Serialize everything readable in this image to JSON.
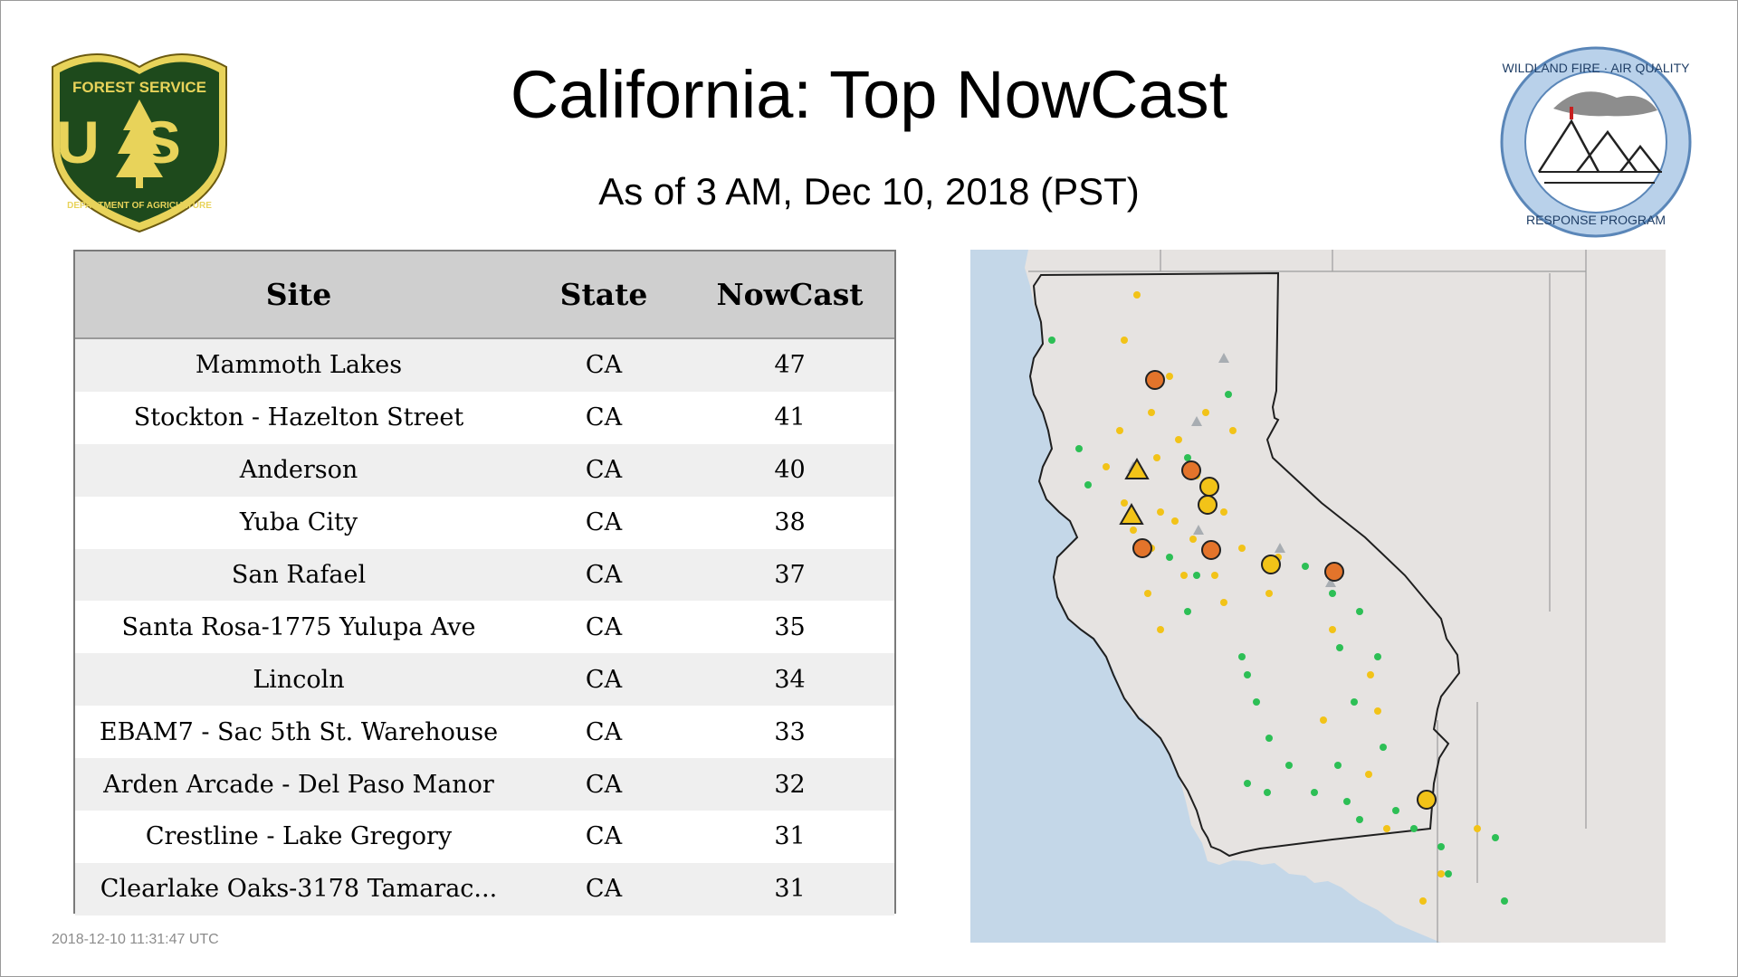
{
  "header": {
    "title": "California: Top NowCast",
    "subtitle": "As of  3 AM, Dec 10, 2018 (PST)"
  },
  "logos": {
    "left": {
      "icon": "forest-service-shield",
      "text_top": "FOREST SERVICE",
      "text_mid": "US",
      "text_bottom": "DEPARTMENT OF AGRICULTURE",
      "colors": {
        "green": "#1e4a1c",
        "gold": "#e8d35a"
      }
    },
    "right": {
      "icon": "wildland-fire-air-quality-seal",
      "text_top": "WILDLAND FIRE · AIR QUALITY",
      "text_bottom": "RESPONSE PROGRAM",
      "colors": {
        "ring": "#b9d1ea",
        "edge": "#5a86b8"
      }
    }
  },
  "table": {
    "columns": [
      "Site",
      "State",
      "NowCast"
    ],
    "rows": [
      {
        "site": "Mammoth Lakes",
        "state": "CA",
        "nowcast": "47"
      },
      {
        "site": "Stockton - Hazelton Street",
        "state": "CA",
        "nowcast": "41"
      },
      {
        "site": "Anderson",
        "state": "CA",
        "nowcast": "40"
      },
      {
        "site": "Yuba City",
        "state": "CA",
        "nowcast": "38"
      },
      {
        "site": "San Rafael",
        "state": "CA",
        "nowcast": "37"
      },
      {
        "site": "Santa Rosa-1775 Yulupa Ave",
        "state": "CA",
        "nowcast": "35"
      },
      {
        "site": "Lincoln",
        "state": "CA",
        "nowcast": "34"
      },
      {
        "site": "EBAM7 - Sac 5th St. Warehouse",
        "state": "CA",
        "nowcast": "33"
      },
      {
        "site": "Arden Arcade - Del Paso Manor",
        "state": "CA",
        "nowcast": "32"
      },
      {
        "site": "Crestline - Lake Gregory",
        "state": "CA",
        "nowcast": "31"
      },
      {
        "site": "Clearlake Oaks-3178 Tamarac...",
        "state": "CA",
        "nowcast": "31"
      }
    ]
  },
  "map": {
    "colors": {
      "ocean": "#c4d7e8",
      "land": "#e6e3e1",
      "outline": "#222222",
      "good": "#2dbf55",
      "moderate": "#f2c318",
      "usg": "#e3742b",
      "neutral": "#a8adb2"
    }
  },
  "footer": {
    "timestamp": "2018-12-10 11:31:47 UTC"
  }
}
